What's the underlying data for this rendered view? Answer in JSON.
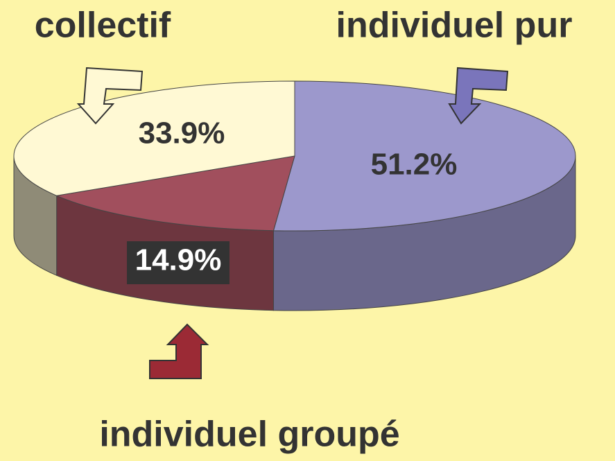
{
  "chart_data": {
    "type": "pie3d",
    "categories": [
      "individuel pur",
      "individuel groupé",
      "collectif"
    ],
    "values": [
      51.2,
      14.9,
      33.9
    ],
    "value_labels": [
      "51.2%",
      "14.9%",
      "33.9%"
    ],
    "colors": [
      "#9c98cc",
      "#a14f5d",
      "#fff9d4"
    ]
  }
}
